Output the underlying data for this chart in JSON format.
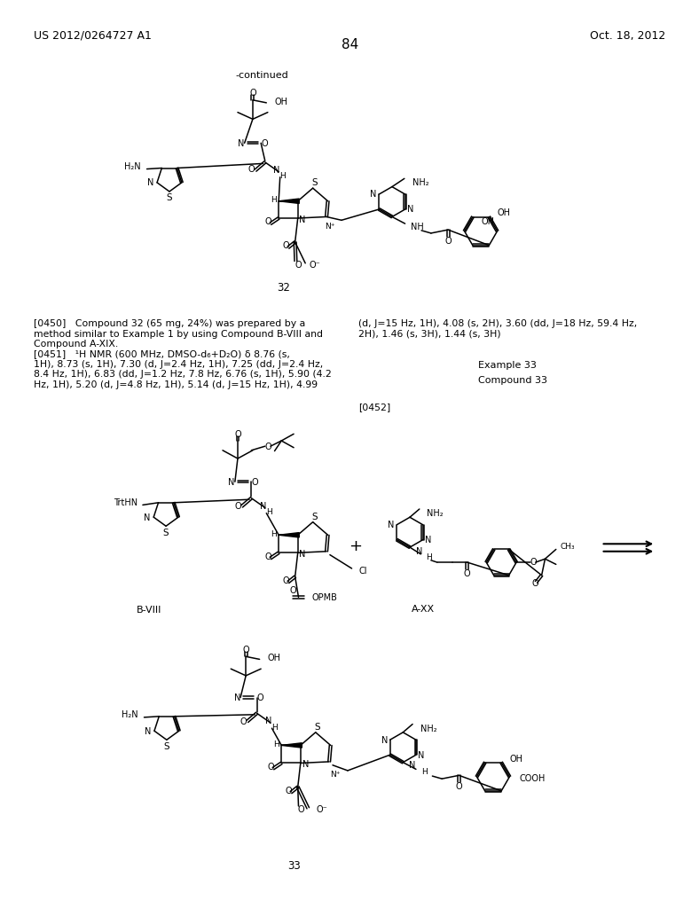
{
  "page_number": "84",
  "header_left": "US 2012/0264727 A1",
  "header_right": "Oct. 18, 2012",
  "continued_label": "-continued",
  "background_color": "#ffffff"
}
